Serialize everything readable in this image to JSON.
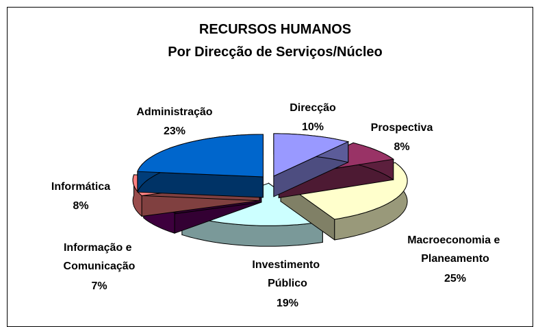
{
  "chart_data": {
    "type": "pie3d",
    "title": "RECURSOS HUMANOS",
    "subtitle": "Por Direcção de Serviços/Núcleo",
    "categories": [
      "Direcção",
      "Prospectiva",
      "Macroeconomia e Planeamento",
      "Investimento Público",
      "Informação e Comunicação",
      "Informática",
      "Administração"
    ],
    "values": [
      10,
      8,
      25,
      19,
      7,
      8,
      23
    ],
    "value_labels": [
      "10%",
      "8%",
      "25%",
      "19%",
      "7%",
      "8%",
      "23%"
    ],
    "colors": [
      "#9999ff",
      "#993366",
      "#ffffcc",
      "#ccffff",
      "#660066",
      "#ff8080",
      "#0066cc"
    ]
  }
}
